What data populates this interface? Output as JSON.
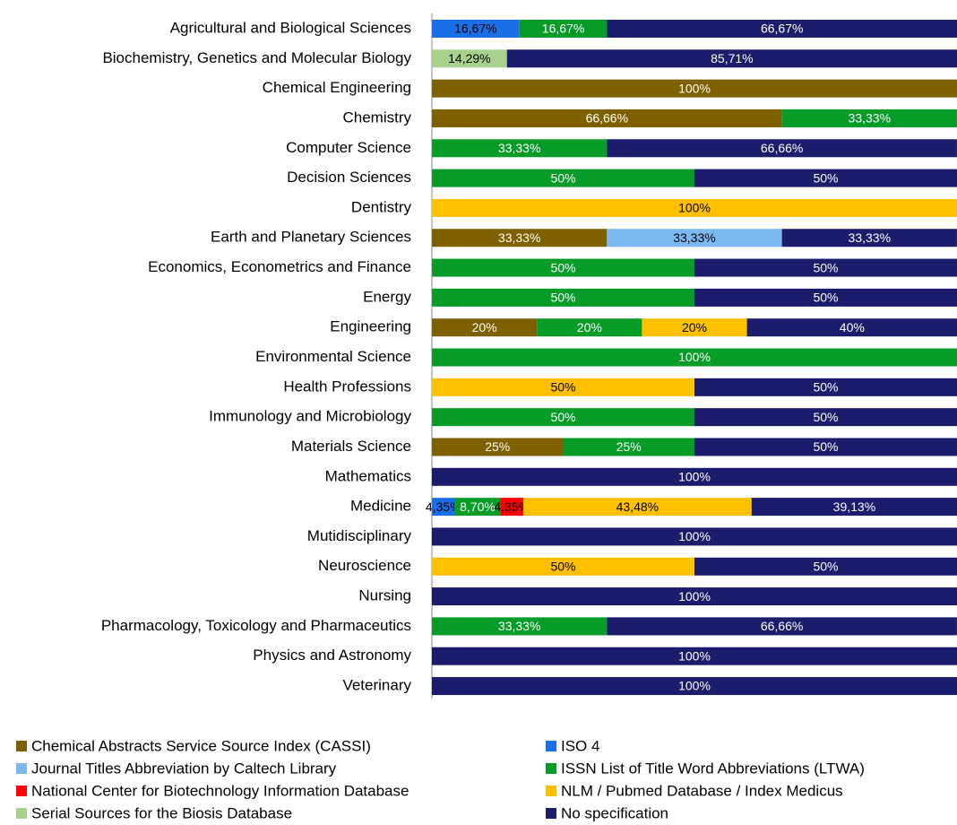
{
  "chart_data": {
    "type": "stacked_bar_horizontal",
    "categories": [
      "Agricultural and Biological Sciences",
      "Biochemistry, Genetics and Molecular Biology",
      "Chemical Engineering",
      "Chemistry",
      "Computer Science",
      "Decision Sciences",
      "Dentistry",
      "Earth and Planetary Sciences",
      "Economics, Econometrics and Finance",
      "Energy",
      "Engineering",
      "Environmental Science",
      "Health Professions",
      "Immunology and Microbiology",
      "Materials Science",
      "Mathematics",
      "Medicine",
      "Mutidisciplinary",
      "Neuroscience",
      "Nursing",
      "Pharmacology, Toxicology and Pharmaceutics",
      "Physics and Astronomy",
      "Veterinary"
    ],
    "xlim": [
      0,
      100
    ],
    "series": [
      {
        "name": "Chemical Abstracts Service Source Index (CASSI)",
        "color": "#7f6000",
        "label_color": "#ffffff",
        "values": [
          null,
          null,
          100,
          66.66,
          null,
          null,
          null,
          33.33,
          null,
          null,
          20,
          null,
          null,
          null,
          25,
          null,
          null,
          null,
          null,
          null,
          null,
          null,
          null
        ],
        "value_labels": [
          null,
          null,
          "100%",
          "66,66%",
          null,
          null,
          null,
          "33,33%",
          null,
          null,
          "20%",
          null,
          null,
          null,
          "25%",
          null,
          null,
          null,
          null,
          null,
          null,
          null,
          null
        ]
      },
      {
        "name": "ISO 4",
        "color": "#1a6fe8",
        "label_color": "#000000",
        "values": [
          16.67,
          null,
          null,
          null,
          null,
          null,
          null,
          null,
          null,
          null,
          null,
          null,
          null,
          null,
          null,
          null,
          4.35,
          null,
          null,
          null,
          null,
          null,
          null
        ],
        "value_labels": [
          "16,67%",
          null,
          null,
          null,
          null,
          null,
          null,
          null,
          null,
          null,
          null,
          null,
          null,
          null,
          null,
          null,
          "4,35%",
          null,
          null,
          null,
          null,
          null,
          null
        ]
      },
      {
        "name": "Journal Titles Abbreviation by Caltech Library",
        "color": "#7cb9f3",
        "label_color": "#000000",
        "values": [
          null,
          null,
          null,
          null,
          null,
          null,
          null,
          33.33,
          null,
          null,
          null,
          null,
          null,
          null,
          null,
          null,
          null,
          null,
          null,
          null,
          null,
          null,
          null
        ],
        "value_labels": [
          null,
          null,
          null,
          null,
          null,
          null,
          null,
          "33,33%",
          null,
          null,
          null,
          null,
          null,
          null,
          null,
          null,
          null,
          null,
          null,
          null,
          null,
          null,
          null
        ]
      },
      {
        "name": "ISSN List of Title Word Abbreviations (LTWA)",
        "color": "#079b28",
        "label_color": "#ffffff",
        "values": [
          16.67,
          null,
          null,
          33.33,
          33.33,
          50,
          null,
          null,
          50,
          50,
          20,
          100,
          null,
          50,
          25,
          null,
          8.7,
          null,
          null,
          null,
          33.33,
          null,
          null
        ],
        "value_labels": [
          "16,67%",
          null,
          null,
          "33,33%",
          "33,33%",
          "50%",
          null,
          null,
          "50%",
          "50%",
          "20%",
          "100%",
          null,
          "50%",
          "25%",
          null,
          "8,70%",
          null,
          null,
          null,
          "33,33%",
          null,
          null
        ]
      },
      {
        "name": "National Center for Biotechnology Information Database",
        "color": "#ff0000",
        "label_color": "#000000",
        "values": [
          null,
          null,
          null,
          null,
          null,
          null,
          null,
          null,
          null,
          null,
          null,
          null,
          null,
          null,
          null,
          null,
          4.35,
          null,
          null,
          null,
          null,
          null,
          null
        ],
        "value_labels": [
          null,
          null,
          null,
          null,
          null,
          null,
          null,
          null,
          null,
          null,
          null,
          null,
          null,
          null,
          null,
          null,
          "4,35%",
          null,
          null,
          null,
          null,
          null,
          null
        ]
      },
      {
        "name": "NLM / Pubmed Database / Index Medicus",
        "color": "#ffc000",
        "label_color": "#000000",
        "values": [
          null,
          null,
          null,
          null,
          null,
          null,
          100,
          null,
          null,
          null,
          20,
          null,
          50,
          null,
          null,
          null,
          43.48,
          null,
          50,
          null,
          null,
          null,
          null
        ],
        "value_labels": [
          null,
          null,
          null,
          null,
          null,
          null,
          "100%",
          null,
          null,
          null,
          "20%",
          null,
          "50%",
          null,
          null,
          null,
          "43,48%",
          null,
          "50%",
          null,
          null,
          null,
          null
        ]
      },
      {
        "name": "Serial Sources for the Biosis  Database",
        "color": "#a9d18e",
        "label_color": "#000000",
        "values": [
          null,
          14.29,
          null,
          null,
          null,
          null,
          null,
          null,
          null,
          null,
          null,
          null,
          null,
          null,
          null,
          null,
          null,
          null,
          null,
          null,
          null,
          null,
          null
        ],
        "value_labels": [
          null,
          "14,29%",
          null,
          null,
          null,
          null,
          null,
          null,
          null,
          null,
          null,
          null,
          null,
          null,
          null,
          null,
          null,
          null,
          null,
          null,
          null,
          null,
          null
        ]
      },
      {
        "name": "No specification",
        "color": "#1c1c6c",
        "label_color": "#ffffff",
        "values": [
          66.67,
          85.71,
          null,
          null,
          66.66,
          50,
          null,
          33.33,
          50,
          50,
          40,
          null,
          50,
          50,
          50,
          100,
          39.13,
          100,
          50,
          100,
          66.66,
          100,
          100
        ],
        "value_labels": [
          "66,67%",
          "85,71%",
          null,
          null,
          "66,66%",
          "50%",
          null,
          "33,33%",
          "50%",
          "50%",
          "40%",
          null,
          "50%",
          "50%",
          "50%",
          "100%",
          "39,13%",
          "100%",
          "50%",
          "100%",
          "66,66%",
          "100%",
          "100%"
        ]
      }
    ]
  }
}
